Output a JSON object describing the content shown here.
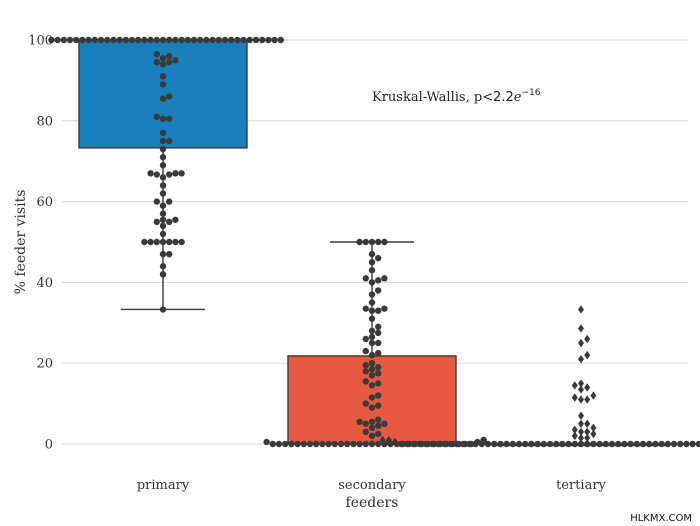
{
  "chart_data": {
    "type": "box",
    "overlay": "swarm",
    "ylabel": "% feeder visits",
    "xlabel": "feeders",
    "ylim": [
      0,
      100
    ],
    "yticks": [
      0,
      20,
      40,
      60,
      80,
      100
    ],
    "grid": true,
    "annotation": {
      "prefix": "Kruskal-Wallis, p<",
      "base": "2.2",
      "mult": "e",
      "exp": "−16"
    },
    "categories": [
      "primary",
      "secondary",
      "tertiary"
    ],
    "boxes": [
      {
        "category": "primary",
        "color": "#1a80bb",
        "q1": 73.3,
        "median": 100,
        "q3": 100,
        "whisker_low": 33.3,
        "whisker_high": 100
      },
      {
        "category": "secondary",
        "color": "#e55a40",
        "q1": 0,
        "median": 0,
        "q3": 21.8,
        "whisker_low": 0,
        "whisker_high": 50
      },
      {
        "category": "tertiary",
        "color": "#2a7f9e",
        "q1": 0,
        "median": 0,
        "q3": 0,
        "whisker_low": 0,
        "whisker_high": 0
      }
    ],
    "points": [
      {
        "category": "primary",
        "values": [
          100,
          100,
          100,
          100,
          100,
          100,
          100,
          100,
          100,
          100,
          100,
          100,
          100,
          100,
          100,
          100,
          100,
          100,
          100,
          100,
          100,
          100,
          100,
          100,
          100,
          100,
          100,
          100,
          100,
          100,
          100,
          100,
          100,
          100,
          100,
          100,
          100,
          100,
          96.5,
          96,
          95.5,
          95,
          94.5,
          94.5,
          94,
          91,
          89,
          86,
          85.5,
          81,
          80.5,
          80.5,
          77,
          75,
          75,
          73,
          71,
          69,
          67,
          67,
          67,
          66.7,
          66.7,
          66,
          64,
          62,
          60,
          60,
          59,
          57,
          55.5,
          55.5,
          55,
          55,
          54,
          52,
          50,
          50,
          50,
          50,
          50,
          50,
          50,
          47,
          47,
          44,
          42,
          33.3
        ]
      },
      {
        "category": "secondary",
        "values": [
          50,
          50,
          50,
          50,
          50,
          47,
          46,
          45,
          43,
          41,
          41,
          40.5,
          40,
          38,
          37,
          35,
          33.5,
          33.5,
          33,
          33,
          31,
          29,
          28,
          27.5,
          26.5,
          26,
          25,
          25,
          23,
          22.5,
          22,
          20,
          19.5,
          19,
          18.5,
          18,
          17.5,
          17,
          15.5,
          15,
          14.5,
          12,
          11.5,
          10,
          9.5,
          9,
          6,
          5.5,
          5.5,
          5,
          5,
          4.5,
          4,
          3,
          2.5,
          2,
          1,
          0.5,
          0.5,
          0,
          0,
          0,
          0,
          0,
          0,
          0,
          0,
          0,
          0,
          0,
          0,
          0,
          0,
          0,
          0,
          0,
          0,
          0,
          0,
          0,
          0,
          0,
          0,
          0,
          0,
          0,
          0,
          0,
          0,
          0,
          0,
          0
        ]
      },
      {
        "category": "tertiary",
        "values": [
          33.3,
          28.6,
          26,
          25,
          22,
          21,
          15,
          14.5,
          14,
          13.5,
          12,
          11.5,
          11,
          11,
          7,
          5,
          5,
          4,
          3.5,
          3,
          3,
          2.5,
          2,
          1.5,
          1.5,
          1,
          1,
          1,
          0.5,
          0.5,
          0,
          0,
          0,
          0,
          0,
          0,
          0,
          0,
          0,
          0,
          0,
          0,
          0,
          0,
          0,
          0,
          0,
          0,
          0,
          0,
          0,
          0,
          0,
          0,
          0,
          0,
          0,
          0,
          0,
          0,
          0,
          0,
          0,
          0,
          0,
          0,
          0,
          0,
          0,
          0,
          0,
          0,
          0,
          0,
          0,
          0,
          0,
          0,
          0,
          0,
          0,
          0,
          0,
          0,
          0,
          0,
          0,
          0,
          0,
          0
        ]
      }
    ]
  },
  "watermark": "HLKMX.COM"
}
